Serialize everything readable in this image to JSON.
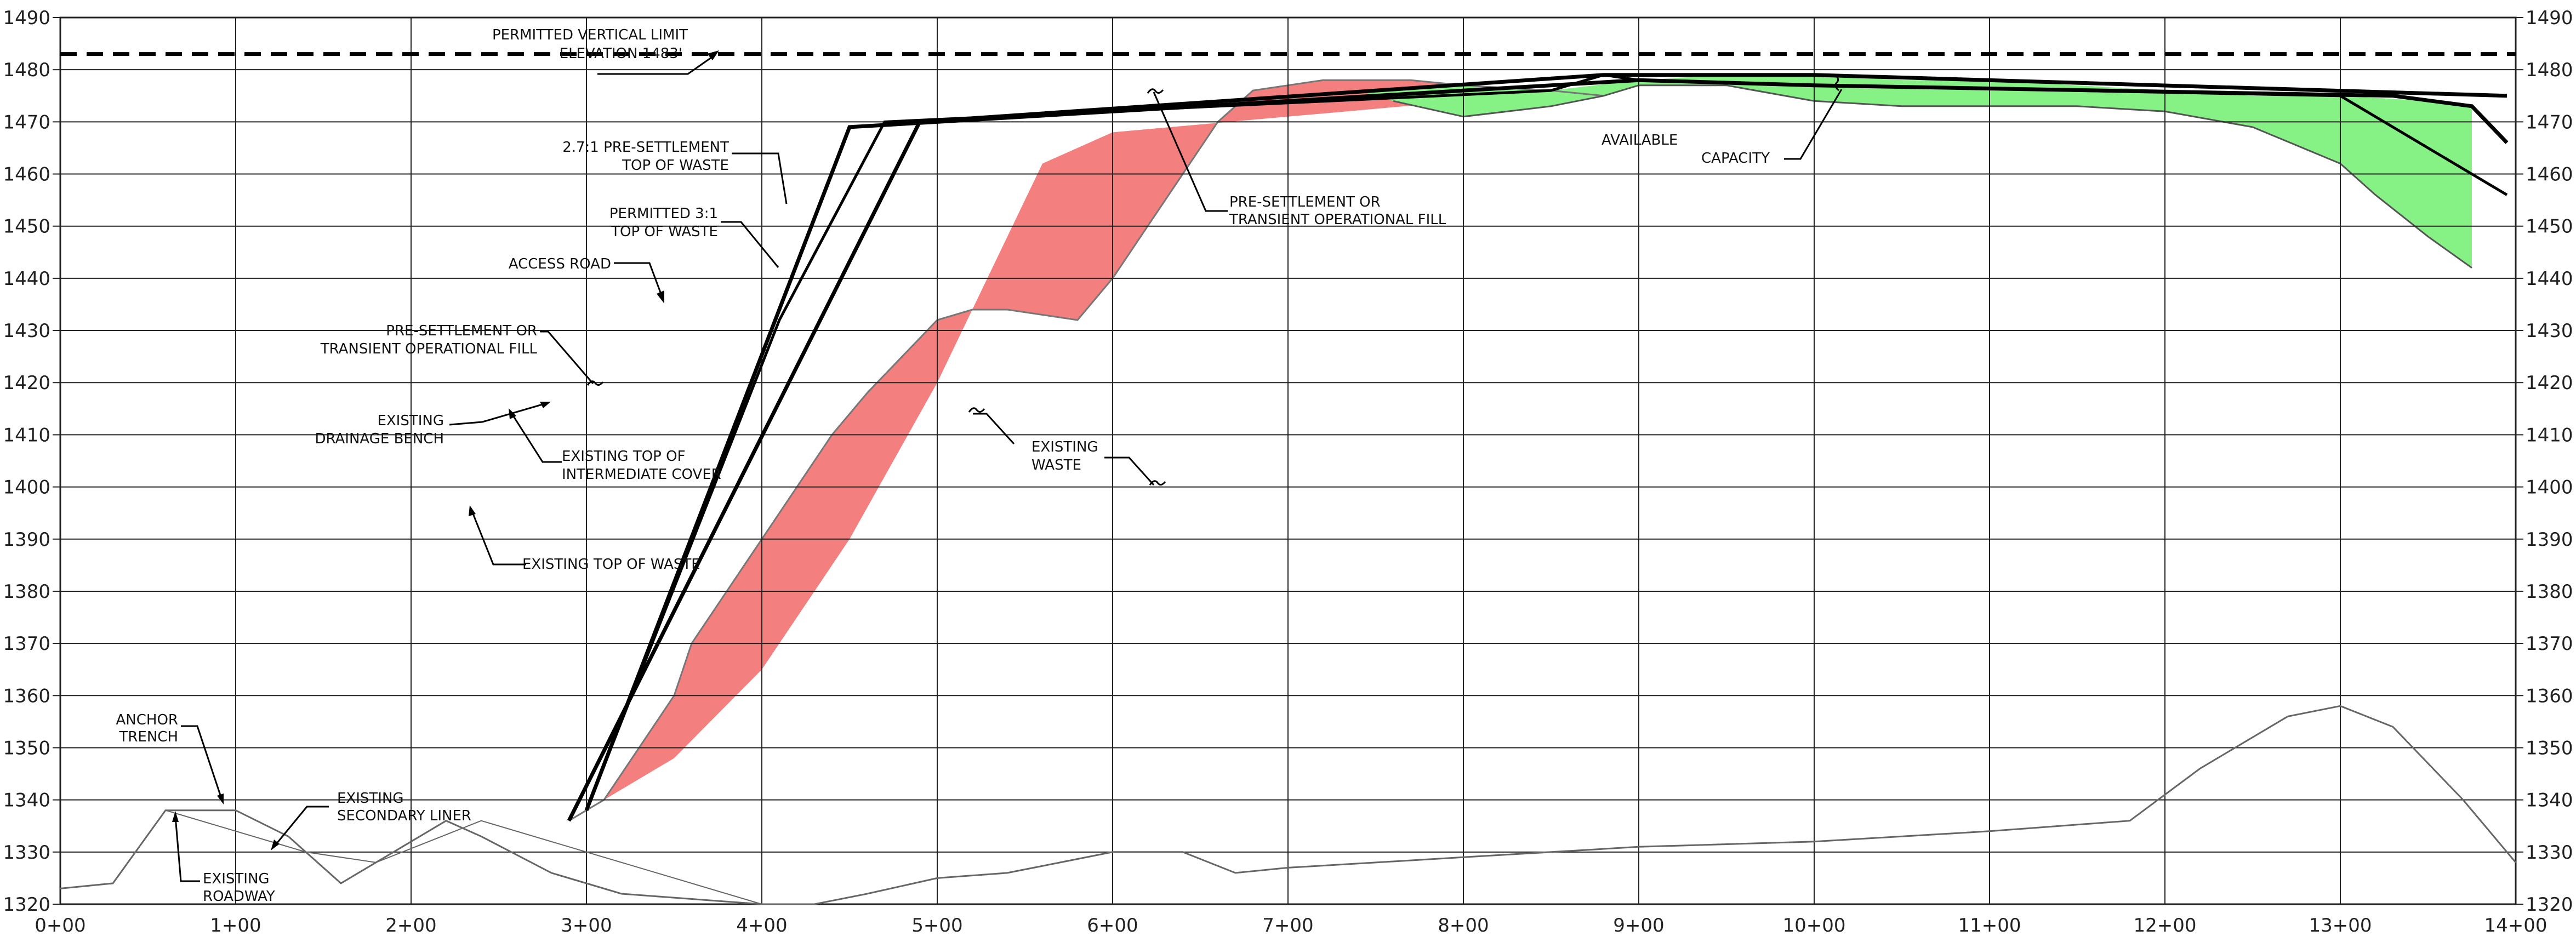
{
  "section": {
    "y_axis_ticks": [
      "1490",
      "1480",
      "1470",
      "1460",
      "1450",
      "1440",
      "1430",
      "1420",
      "1410",
      "1400",
      "1390",
      "1380",
      "1370",
      "1360",
      "1350",
      "1340",
      "1330",
      "1320"
    ],
    "x_axis_ticks": [
      "0+00",
      "1+00",
      "2+00",
      "3+00",
      "4+00",
      "5+00",
      "6+00",
      "7+00",
      "8+00",
      "9+00",
      "10+00",
      "11+00",
      "12+00",
      "13+00",
      "14+00"
    ],
    "limits": {
      "x_ft": [
        0,
        1400
      ],
      "elevation_ft": [
        1320,
        1490
      ]
    },
    "permitted_vertical_limit_elevation": 1483
  },
  "labels": {
    "permitted_limit": [
      "PERMITTED VERTICAL LIMIT",
      "ELEVATION 1483'"
    ],
    "presettle_top": [
      "2.7:1 PRE-SETTLEMENT",
      "TOP OF WASTE"
    ],
    "permitted_31": [
      "PERMITTED 3:1",
      "TOP OF WASTE"
    ],
    "access_road": [
      "ACCESS ROAD"
    ],
    "transient_fill_left": [
      "PRE-SETTLEMENT OR",
      "TRANSIENT OPERATIONAL FILL"
    ],
    "drainage_bench": [
      "EXISTING",
      "DRAINAGE BENCH"
    ],
    "intermediate_cover": [
      "EXISTING TOP OF",
      "INTERMEDIATE COVER"
    ],
    "top_of_waste": [
      "EXISTING TOP OF WASTE"
    ],
    "anchor_trench": [
      "ANCHOR",
      "TRENCH"
    ],
    "secondary_liner": [
      "EXISTING",
      "SECONDARY LINER"
    ],
    "roadway": [
      "EXISTING",
      "ROADWAY"
    ],
    "existing_waste": [
      "EXISTING",
      "WASTE"
    ],
    "transient_fill_top": [
      "PRE-SETTLEMENT OR",
      "TRANSIENT OPERATIONAL FILL"
    ],
    "available": [
      "AVAILABLE"
    ],
    "capacity": [
      "CAPACITY"
    ]
  },
  "colors": {
    "fill_red": "#f47f7f",
    "fill_green": "#86f286",
    "line": "#000000",
    "grid": "#222222"
  },
  "profiles": {
    "permitted_31_top": [
      [
        290,
        1336
      ],
      [
        490,
        1470
      ],
      [
        880,
        1479
      ],
      [
        1000,
        1479
      ],
      [
        1395,
        1475
      ]
    ],
    "presettle_27_top": [
      [
        300,
        1338
      ],
      [
        450,
        1469
      ],
      [
        900,
        1478
      ],
      [
        1000,
        1477
      ],
      [
        1330,
        1475
      ],
      [
        1375,
        1473
      ],
      [
        1395,
        1466
      ]
    ],
    "existing_top_of_waste": [
      [
        300,
        1338
      ],
      [
        410,
        1432
      ],
      [
        470,
        1470
      ],
      [
        850,
        1476
      ],
      [
        880,
        1479
      ],
      [
        900,
        1478
      ],
      [
        1000,
        1477
      ],
      [
        1300,
        1475
      ],
      [
        1395,
        1456
      ]
    ],
    "red_fill_upper": [
      [
        290,
        1336
      ],
      [
        310,
        1340
      ],
      [
        320,
        1345
      ],
      [
        330,
        1350
      ],
      [
        340,
        1355
      ],
      [
        350,
        1360
      ],
      [
        360,
        1370
      ],
      [
        380,
        1380
      ],
      [
        400,
        1390
      ],
      [
        420,
        1400
      ],
      [
        440,
        1410
      ],
      [
        460,
        1418
      ],
      [
        480,
        1425
      ],
      [
        500,
        1432
      ],
      [
        520,
        1434
      ],
      [
        540,
        1434
      ],
      [
        560,
        1433
      ],
      [
        580,
        1432
      ],
      [
        600,
        1440
      ],
      [
        620,
        1450
      ],
      [
        640,
        1460
      ],
      [
        660,
        1470
      ],
      [
        680,
        1476
      ],
      [
        720,
        1478
      ],
      [
        770,
        1478
      ],
      [
        800,
        1477
      ],
      [
        850,
        1476
      ],
      [
        880,
        1475
      ]
    ],
    "red_fill_lower": [
      [
        880,
        1475
      ],
      [
        850,
        1475
      ],
      [
        800,
        1474
      ],
      [
        700,
        1471
      ],
      [
        600,
        1468
      ],
      [
        560,
        1462
      ],
      [
        500,
        1420
      ],
      [
        450,
        1390
      ],
      [
        400,
        1365
      ],
      [
        350,
        1348
      ],
      [
        300,
        1338
      ]
    ],
    "green_fill_upper": [
      [
        740,
        1476
      ],
      [
        800,
        1477
      ],
      [
        850,
        1476
      ],
      [
        900,
        1478
      ],
      [
        950,
        1479
      ],
      [
        1000,
        1479
      ],
      [
        1050,
        1478
      ],
      [
        1100,
        1478
      ],
      [
        1150,
        1477
      ],
      [
        1200,
        1476
      ],
      [
        1250,
        1475
      ],
      [
        1300,
        1475
      ],
      [
        1350,
        1474
      ],
      [
        1375,
        1473
      ]
    ],
    "green_fill_lower": [
      [
        1375,
        1442
      ],
      [
        1350,
        1448
      ],
      [
        1320,
        1456
      ],
      [
        1300,
        1462
      ],
      [
        1250,
        1469
      ],
      [
        1200,
        1472
      ],
      [
        1150,
        1473
      ],
      [
        1100,
        1473
      ],
      [
        1050,
        1473
      ],
      [
        1000,
        1474
      ],
      [
        950,
        1477
      ],
      [
        900,
        1477
      ],
      [
        880,
        1475
      ],
      [
        850,
        1473
      ],
      [
        800,
        1471
      ],
      [
        760,
        1474
      ]
    ],
    "ground_liner": [
      [
        0,
        1323
      ],
      [
        30,
        1324
      ],
      [
        60,
        1338
      ],
      [
        100,
        1338
      ],
      [
        130,
        1333
      ],
      [
        160,
        1324
      ],
      [
        190,
        1330
      ],
      [
        220,
        1336
      ],
      [
        240,
        1333
      ],
      [
        280,
        1326
      ],
      [
        320,
        1322
      ],
      [
        360,
        1321
      ],
      [
        400,
        1320
      ],
      [
        430,
        1320
      ],
      [
        460,
        1322
      ],
      [
        500,
        1325
      ],
      [
        540,
        1326
      ],
      [
        570,
        1328
      ],
      [
        600,
        1330
      ],
      [
        640,
        1330
      ],
      [
        670,
        1326
      ],
      [
        700,
        1327
      ],
      [
        750,
        1328
      ],
      [
        800,
        1329
      ],
      [
        900,
        1331
      ],
      [
        1000,
        1332
      ],
      [
        1100,
        1334
      ],
      [
        1180,
        1336
      ],
      [
        1220,
        1346
      ],
      [
        1270,
        1356
      ],
      [
        1300,
        1358
      ],
      [
        1330,
        1354
      ],
      [
        1370,
        1340
      ],
      [
        1400,
        1328
      ]
    ],
    "ground_lower": [
      [
        0,
        1323
      ],
      [
        30,
        1324
      ],
      [
        60,
        1338
      ],
      [
        90,
        1335
      ],
      [
        140,
        1330
      ],
      [
        180,
        1328
      ],
      [
        240,
        1336
      ],
      [
        300,
        1330
      ],
      [
        400,
        1320
      ]
    ]
  }
}
